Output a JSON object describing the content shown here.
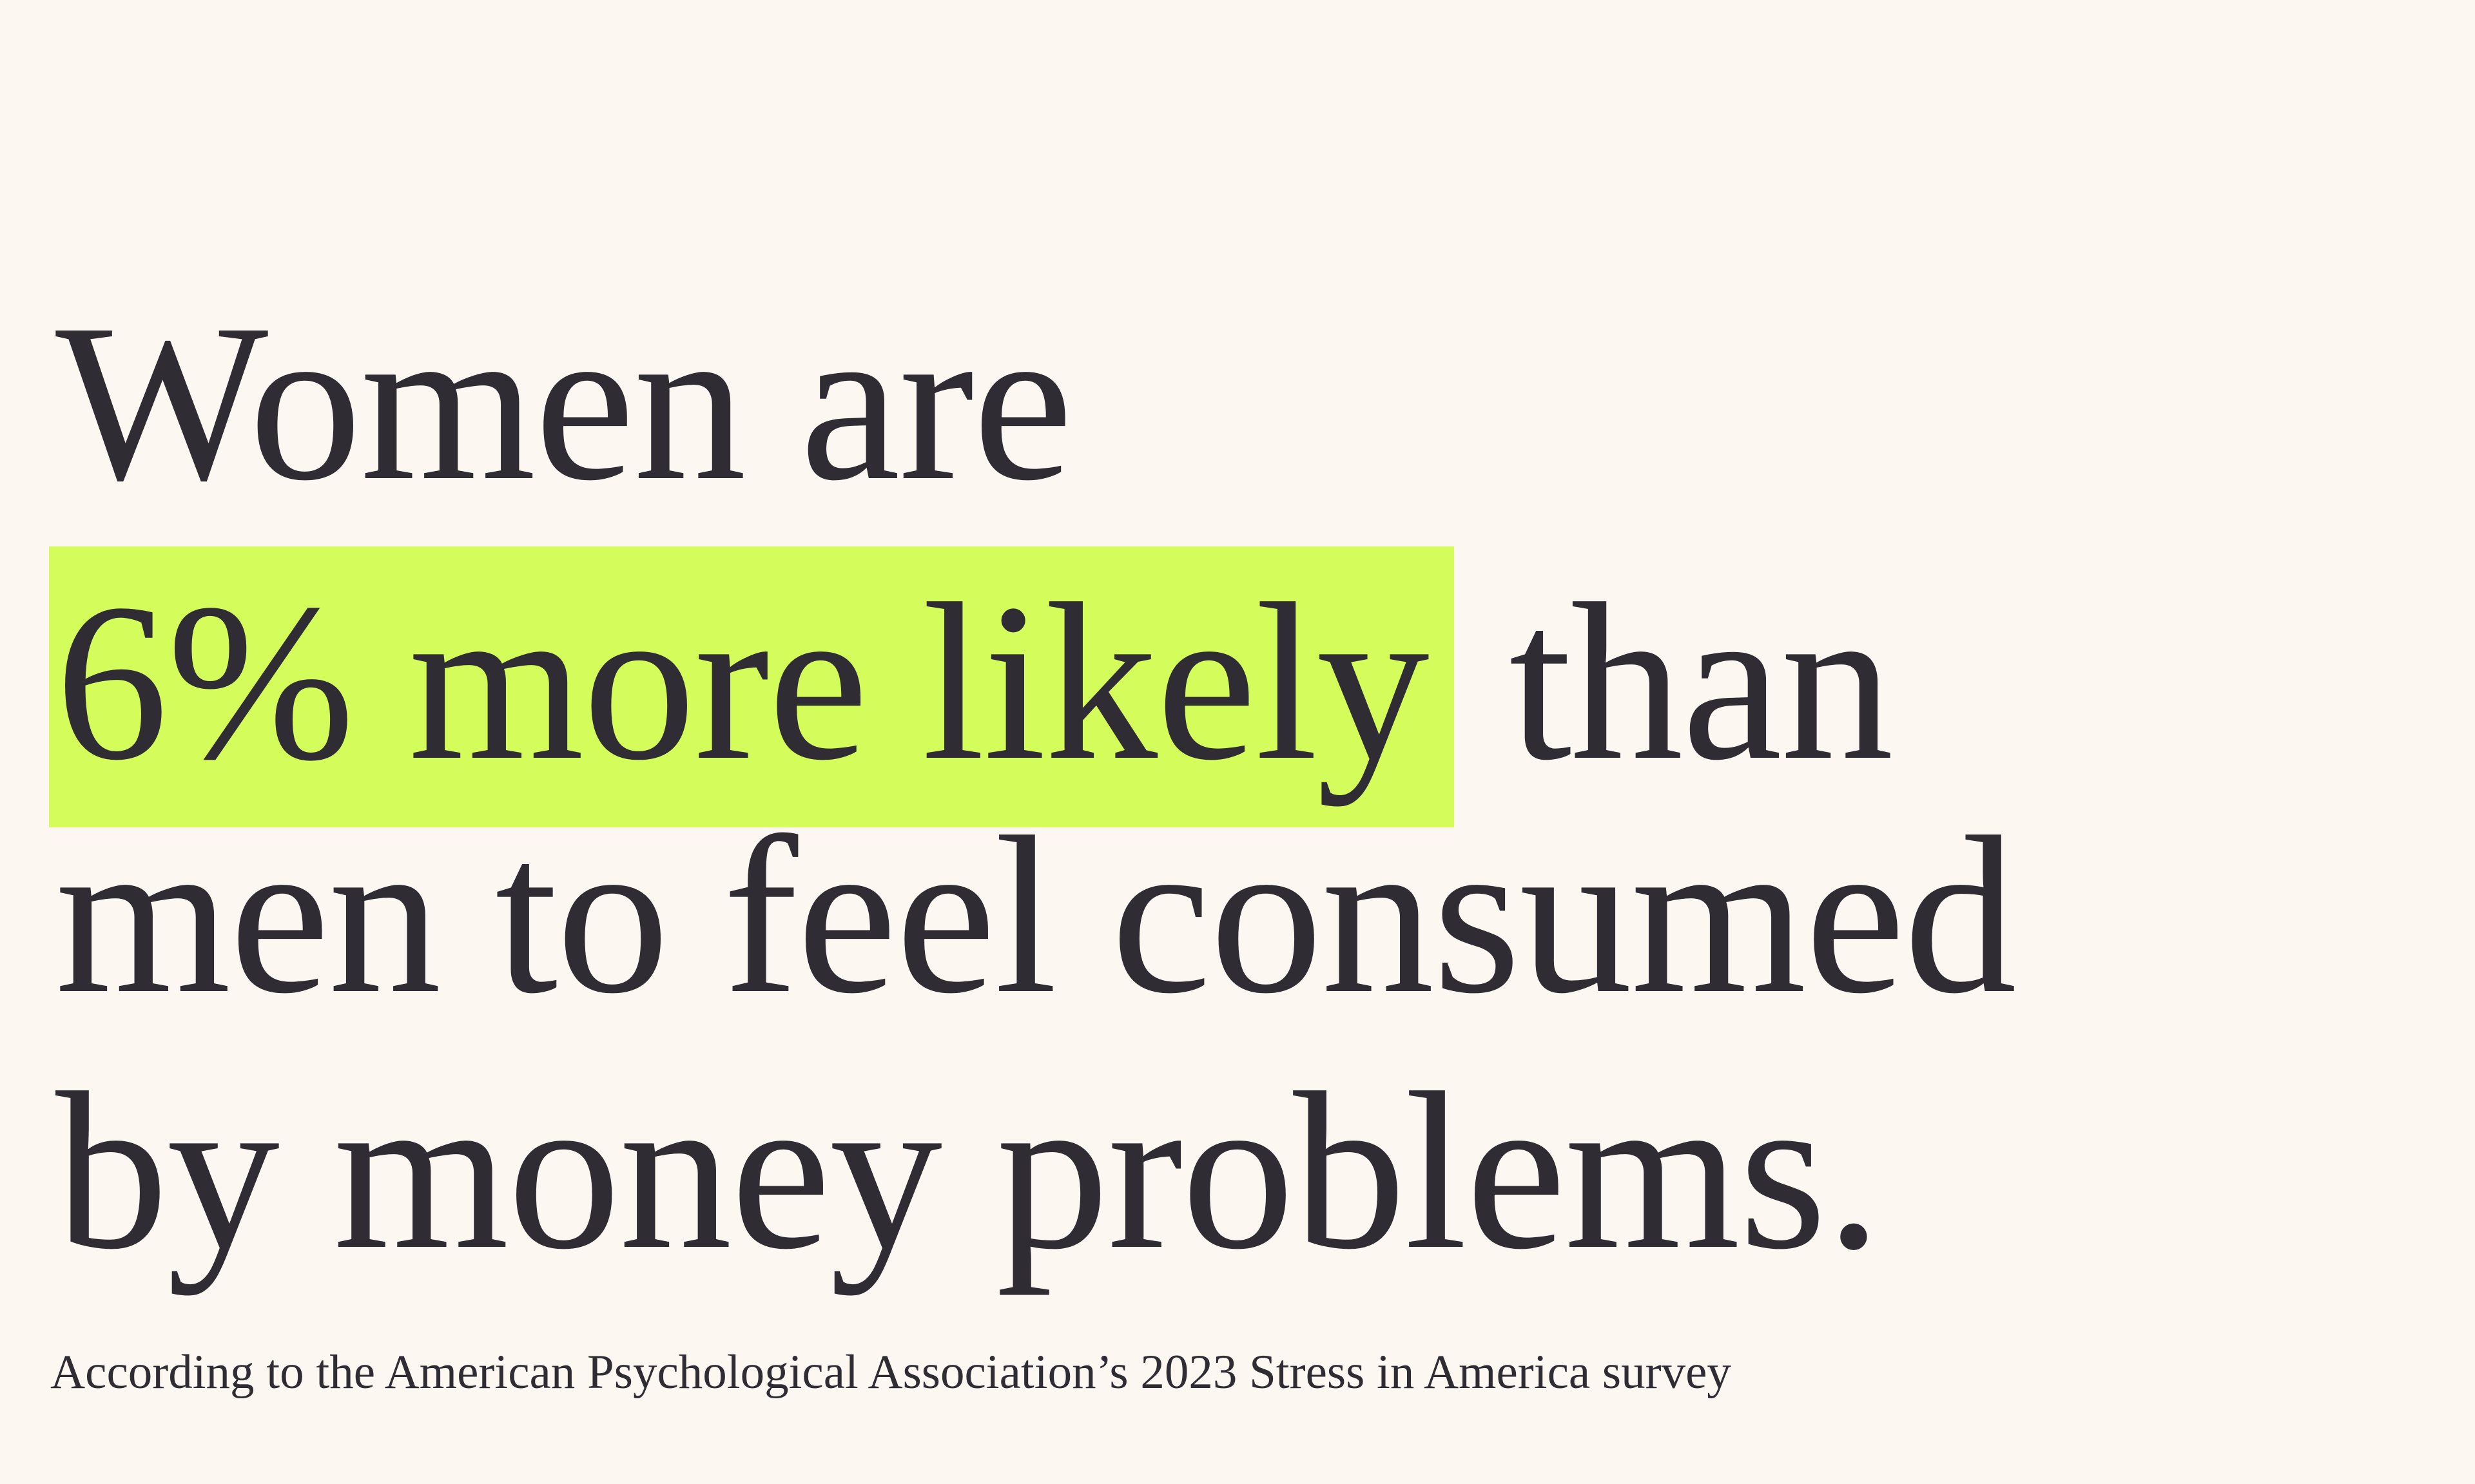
{
  "headline": {
    "line1": "Women are",
    "highlight": "6% more likely",
    "line2_rest": "than",
    "line3": "men to feel consumed",
    "line4": "by money problems."
  },
  "source": "According to the American Psychological Association’s 2023 Stress in America survey"
}
